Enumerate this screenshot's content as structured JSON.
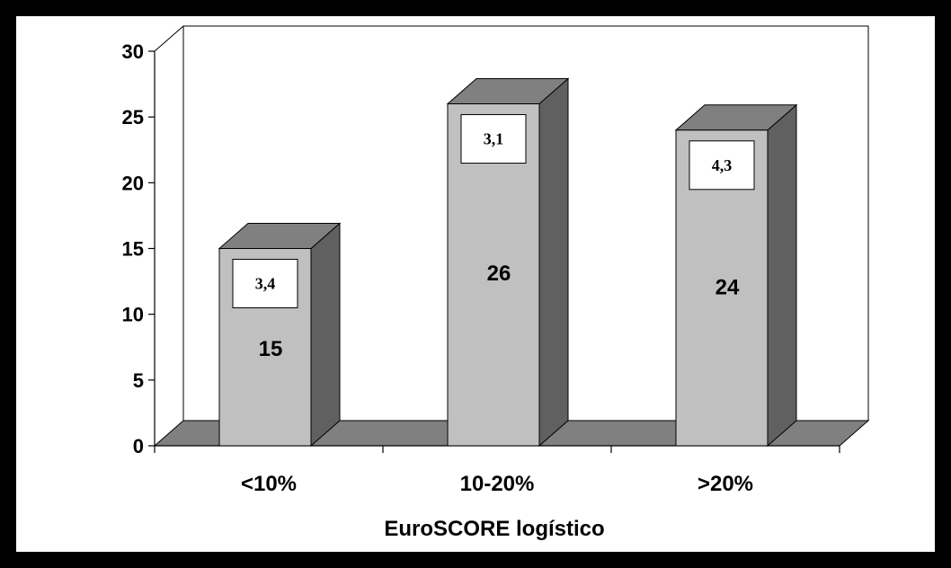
{
  "chart_data": {
    "type": "bar",
    "categories": [
      "<10%",
      "10-20%",
      ">20%"
    ],
    "values": [
      15,
      26,
      24
    ],
    "annotations": [
      "3,4",
      "3,1",
      "4,3"
    ],
    "title": "",
    "xlabel": "EuroSCORE logístico",
    "ylabel": "",
    "ylim": [
      0,
      30
    ],
    "yticks": [
      0,
      5,
      10,
      15,
      20,
      25,
      30
    ],
    "grid": false,
    "style": "3d-column",
    "colors": {
      "front": "#c0c0c0",
      "top": "#808080",
      "side": "#606060",
      "floor": "#808080",
      "frame_border": "#000000",
      "background": "#ffffff"
    }
  }
}
